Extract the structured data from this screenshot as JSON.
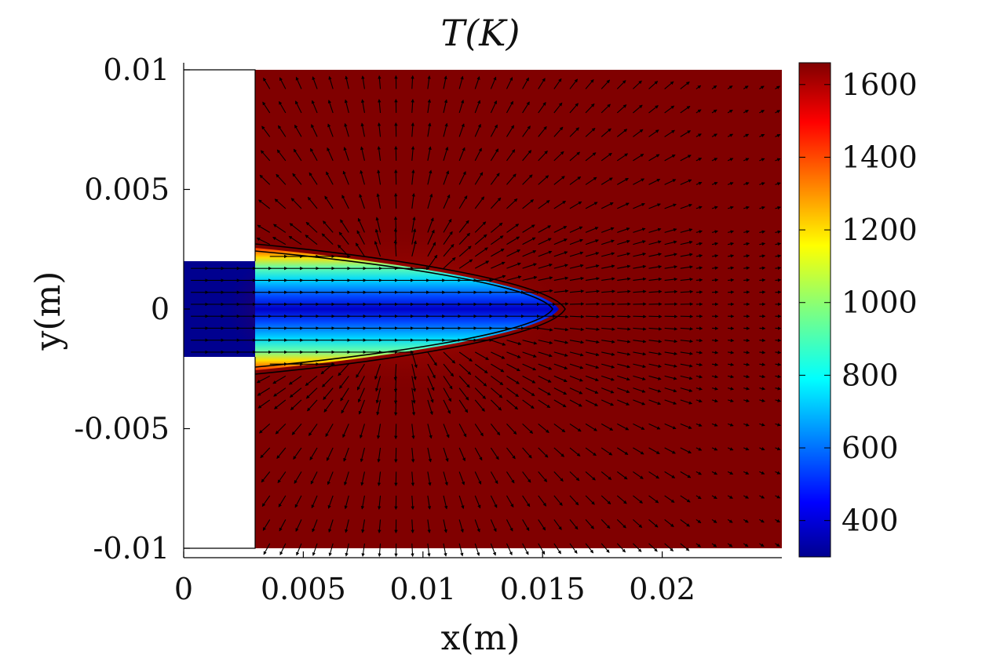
{
  "chart_data": {
    "type": "heatmap",
    "title": "T(K)",
    "xlabel": "x(m)",
    "ylabel": "y(m)",
    "xlim": [
      0,
      0.025
    ],
    "ylim": [
      -0.01,
      0.01
    ],
    "x_ticks": [
      {
        "value": 0,
        "label": "0"
      },
      {
        "value": 0.005,
        "label": "0.005"
      },
      {
        "value": 0.01,
        "label": "0.01"
      },
      {
        "value": 0.015,
        "label": "0.015"
      },
      {
        "value": 0.02,
        "label": "0.02"
      }
    ],
    "y_ticks": [
      {
        "value": 0.01,
        "label": "0.01"
      },
      {
        "value": 0.005,
        "label": "0.005"
      },
      {
        "value": 0,
        "label": "0"
      },
      {
        "value": -0.005,
        "label": "-0.005"
      },
      {
        "value": -0.01,
        "label": "-0.01"
      }
    ],
    "colorbar": {
      "colormap": "jet",
      "range": [
        300,
        1660
      ],
      "ticks": [
        {
          "value": 400,
          "label": "400"
        },
        {
          "value": 600,
          "label": "600"
        },
        {
          "value": 800,
          "label": "800"
        },
        {
          "value": 1000,
          "label": "1000"
        },
        {
          "value": 1200,
          "label": "1200"
        },
        {
          "value": 1400,
          "label": "1400"
        },
        {
          "value": 1600,
          "label": "1600"
        }
      ]
    },
    "geometry": {
      "wall_x_end": 0.003,
      "inlet_half_width": 0.002,
      "flame_tip_x": 0.0155,
      "flame_base_half_width": 0.0026,
      "domain_x_end": 0.025
    },
    "field": {
      "unburnt_temperature": 300,
      "burnt_temperature": 1660,
      "overlay": "velocity vectors (quiver)"
    }
  }
}
